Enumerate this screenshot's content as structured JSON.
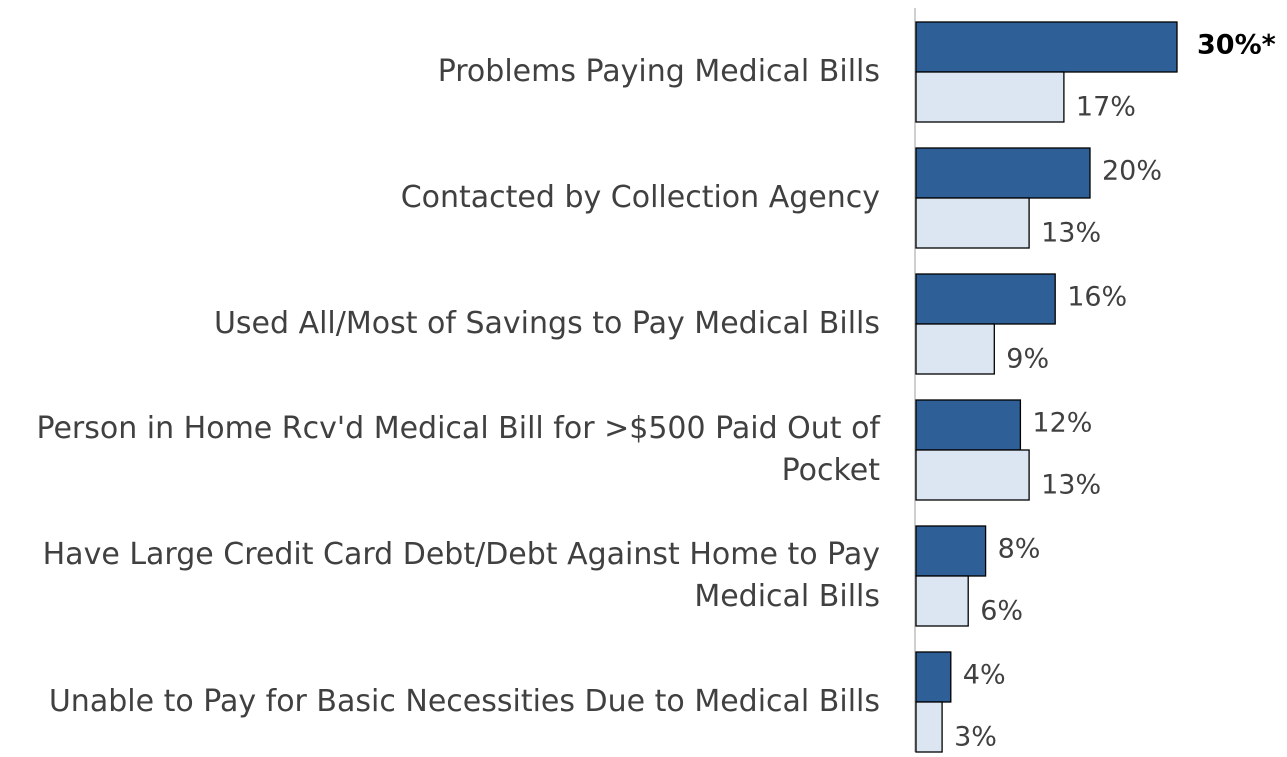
{
  "chart_data": {
    "type": "bar",
    "orientation": "horizontal",
    "categories": [
      "Problems Paying Medical Bills",
      "Contacted by Collection Agency",
      "Used All/Most of Savings to Pay Medical Bills",
      "Person in Home Rcv'd Medical Bill for >$500 Paid Out of Pocket",
      "Have Large Credit Card Debt/Debt Against Home to Pay Medical Bills",
      "Unable to Pay for Basic Necessities Due to Medical Bills"
    ],
    "series": [
      {
        "color": "#2f5f97",
        "values": [
          30,
          20,
          16,
          12,
          8,
          4
        ],
        "value_labels": [
          "30%*",
          "20%",
          "16%",
          "12%",
          "8%",
          "4%"
        ]
      },
      {
        "color": "#dce6f2",
        "values": [
          17,
          13,
          9,
          13,
          6,
          3
        ],
        "value_labels": [
          "17%",
          "13%",
          "9%",
          "13%",
          "6%",
          "3%"
        ]
      }
    ],
    "xlim": [
      0,
      30
    ]
  }
}
